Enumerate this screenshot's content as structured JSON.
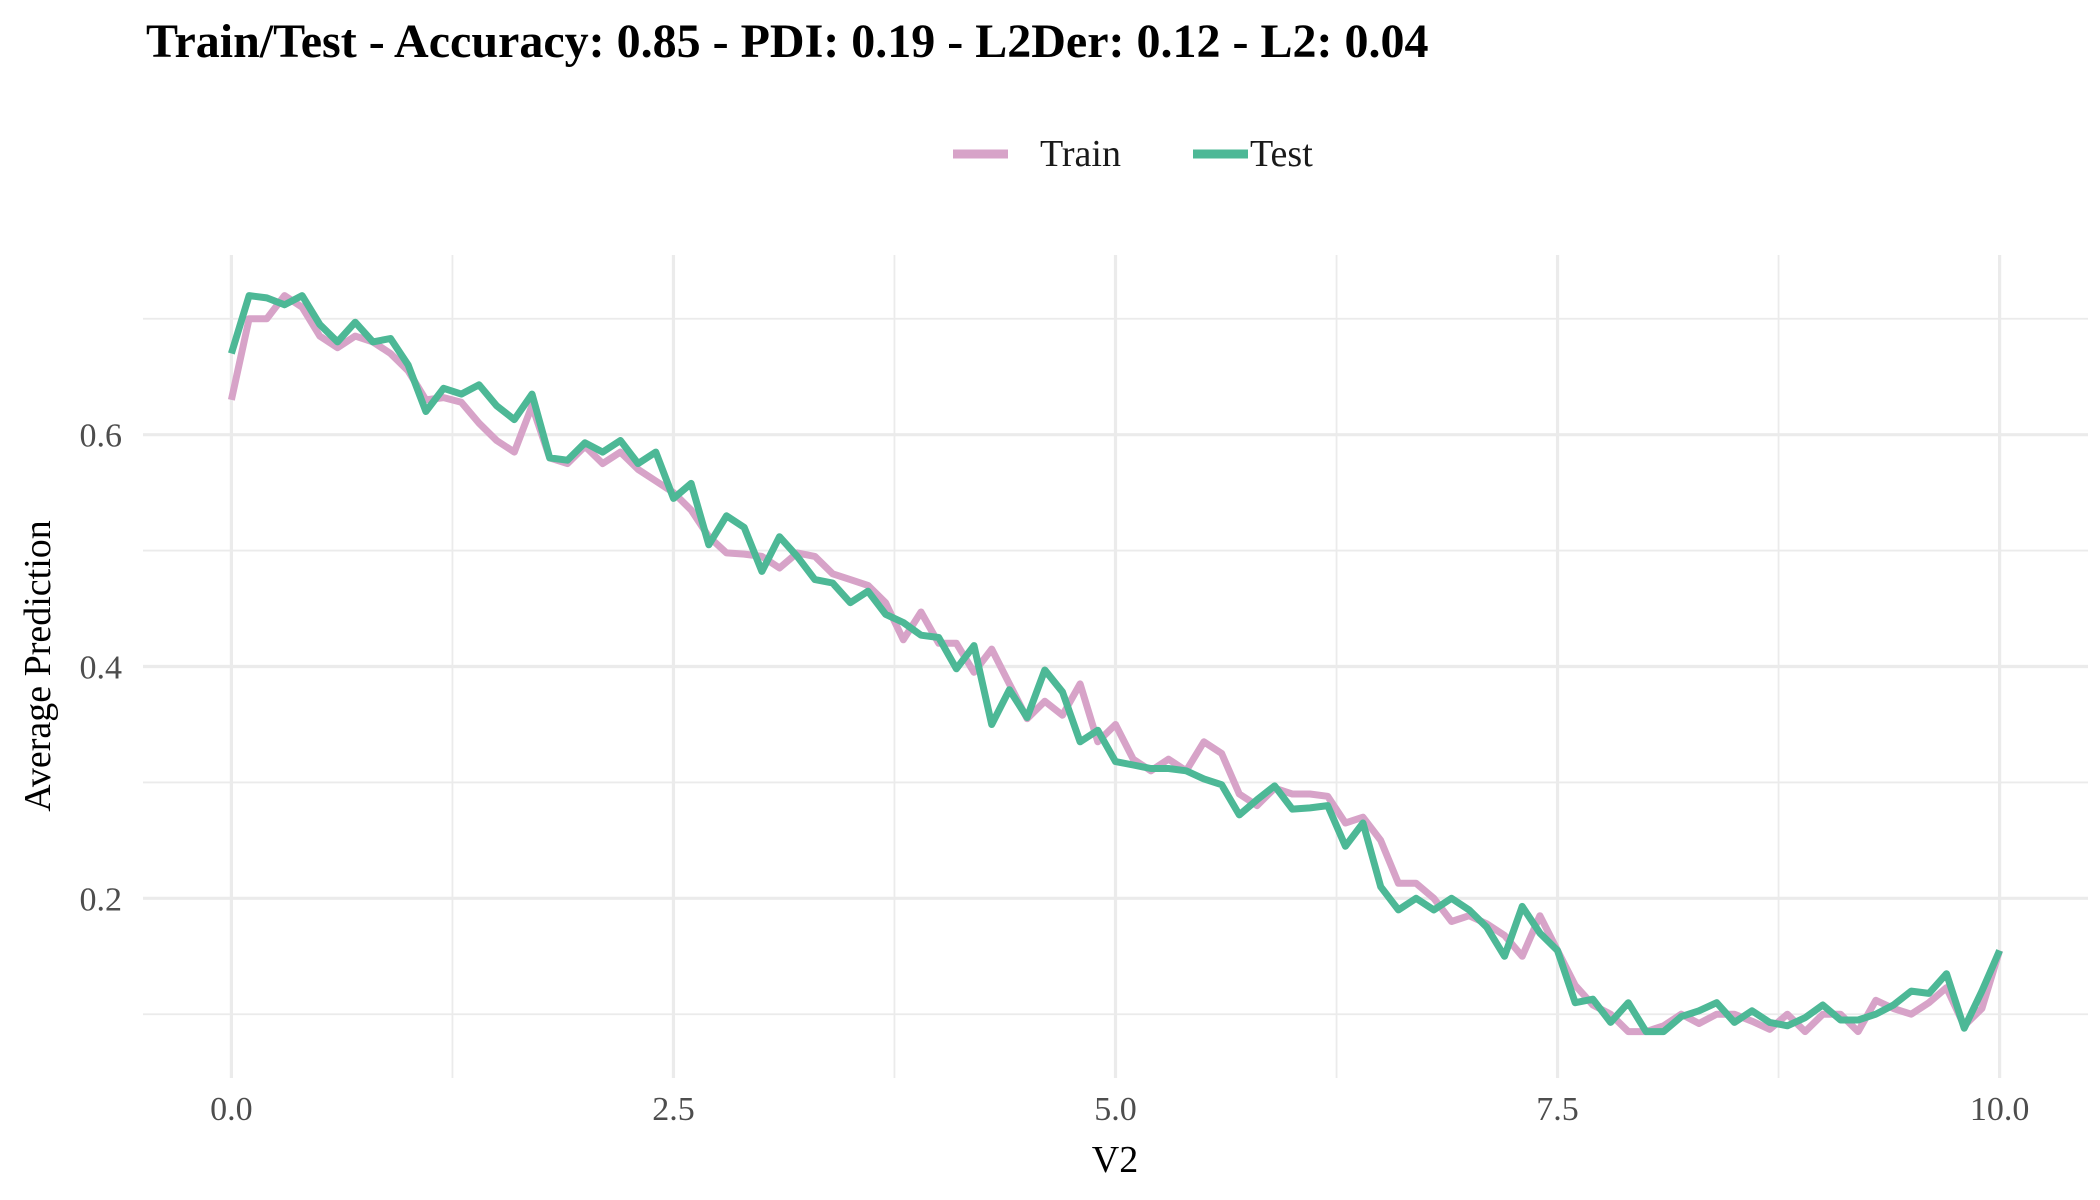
{
  "chart_data": {
    "type": "line",
    "title": "Train/Test - Accuracy: 0.85 - PDI: 0.19 - L2Der: 0.12 - L2: 0.04",
    "xlabel": "V2",
    "ylabel": "Average Prediction",
    "xlim": [
      -0.5,
      10.5
    ],
    "ylim": [
      0.045,
      0.755
    ],
    "x_ticks": [
      0.0,
      2.5,
      5.0,
      7.5,
      10.0
    ],
    "x_tick_labels": [
      "0.0",
      "2.5",
      "5.0",
      "7.5",
      "10.0"
    ],
    "y_ticks": [
      0.2,
      0.4,
      0.6
    ],
    "y_tick_labels": [
      "0.2",
      "0.4",
      "0.6"
    ],
    "grid": true,
    "legend_position": "top",
    "x": [
      0.0,
      0.1,
      0.2,
      0.3,
      0.4,
      0.5,
      0.6,
      0.7,
      0.8,
      0.9,
      1.0,
      1.1,
      1.2,
      1.3,
      1.4,
      1.5,
      1.6,
      1.7,
      1.8,
      1.9,
      2.0,
      2.1,
      2.2,
      2.3,
      2.4,
      2.5,
      2.6,
      2.7,
      2.8,
      2.9,
      3.0,
      3.1,
      3.2,
      3.3,
      3.4,
      3.5,
      3.6,
      3.7,
      3.8,
      3.9,
      4.0,
      4.1,
      4.2,
      4.3,
      4.4,
      4.5,
      4.6,
      4.7,
      4.8,
      4.9,
      5.0,
      5.1,
      5.2,
      5.3,
      5.4,
      5.5,
      5.6,
      5.7,
      5.8,
      5.9,
      6.0,
      6.1,
      6.2,
      6.3,
      6.4,
      6.5,
      6.6,
      6.7,
      6.8,
      6.9,
      7.0,
      7.1,
      7.2,
      7.3,
      7.4,
      7.5,
      7.6,
      7.7,
      7.8,
      7.9,
      8.0,
      8.1,
      8.2,
      8.3,
      8.4,
      8.5,
      8.6,
      8.7,
      8.8,
      8.9,
      9.0,
      9.1,
      9.2,
      9.3,
      9.4,
      9.5,
      9.6,
      9.7,
      9.8,
      9.9,
      10.0
    ],
    "series": [
      {
        "name": "Train",
        "color": "#d7a3c8",
        "values": [
          0.63,
          0.7,
          0.7,
          0.72,
          0.71,
          0.685,
          0.675,
          0.685,
          0.68,
          0.67,
          0.655,
          0.63,
          0.632,
          0.628,
          0.61,
          0.595,
          0.585,
          0.625,
          0.58,
          0.575,
          0.59,
          0.575,
          0.585,
          0.57,
          0.56,
          0.55,
          0.535,
          0.512,
          0.498,
          0.497,
          0.495,
          0.485,
          0.498,
          0.495,
          0.48,
          0.475,
          0.47,
          0.455,
          0.423,
          0.447,
          0.42,
          0.42,
          0.395,
          0.415,
          0.385,
          0.355,
          0.37,
          0.358,
          0.385,
          0.335,
          0.35,
          0.32,
          0.31,
          0.32,
          0.31,
          0.335,
          0.325,
          0.29,
          0.28,
          0.295,
          0.29,
          0.29,
          0.288,
          0.265,
          0.27,
          0.25,
          0.213,
          0.213,
          0.2,
          0.18,
          0.185,
          0.178,
          0.168,
          0.15,
          0.185,
          0.155,
          0.125,
          0.108,
          0.1,
          0.085,
          0.085,
          0.09,
          0.1,
          0.092,
          0.1,
          0.1,
          0.094,
          0.087,
          0.1,
          0.085,
          0.1,
          0.1,
          0.085,
          0.112,
          0.105,
          0.1,
          0.11,
          0.123,
          0.09,
          0.105,
          0.155
        ]
      },
      {
        "name": "Test",
        "color": "#4db896",
        "values": [
          0.67,
          0.72,
          0.718,
          0.712,
          0.72,
          0.695,
          0.68,
          0.697,
          0.68,
          0.683,
          0.66,
          0.62,
          0.64,
          0.635,
          0.643,
          0.625,
          0.613,
          0.635,
          0.58,
          0.578,
          0.593,
          0.585,
          0.595,
          0.575,
          0.585,
          0.545,
          0.558,
          0.505,
          0.53,
          0.52,
          0.482,
          0.512,
          0.495,
          0.475,
          0.472,
          0.455,
          0.465,
          0.445,
          0.438,
          0.427,
          0.425,
          0.398,
          0.418,
          0.35,
          0.38,
          0.356,
          0.397,
          0.378,
          0.335,
          0.345,
          0.318,
          0.315,
          0.312,
          0.312,
          0.31,
          0.303,
          0.298,
          0.272,
          0.285,
          0.297,
          0.277,
          0.278,
          0.28,
          0.245,
          0.265,
          0.21,
          0.19,
          0.2,
          0.19,
          0.2,
          0.19,
          0.175,
          0.15,
          0.193,
          0.17,
          0.155,
          0.11,
          0.113,
          0.093,
          0.11,
          0.085,
          0.085,
          0.098,
          0.103,
          0.11,
          0.093,
          0.103,
          0.093,
          0.09,
          0.097,
          0.108,
          0.095,
          0.095,
          0.1,
          0.108,
          0.12,
          0.118,
          0.135,
          0.088,
          0.12,
          0.155
        ]
      }
    ]
  }
}
